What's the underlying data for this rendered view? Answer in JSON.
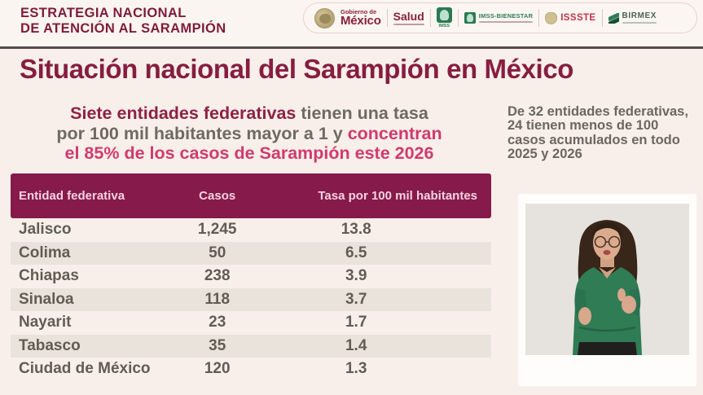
{
  "colors": {
    "maroon": "#871d41",
    "pink_accent": "#d13a6e",
    "table_header_bg": "#861a4b",
    "row_stripe": "#eae3dc",
    "gray_text": "#6e6a61",
    "green_logo": "#2a7a52",
    "page_bg": "#f8efea"
  },
  "brand": {
    "line1": "ESTRATEGIA NACIONAL",
    "line2": "DE ATENCIÓN AL SARAMPIÓN"
  },
  "logo_bar": {
    "gobierno_small": "Gobierno de",
    "gobierno_big": "México",
    "salud": "Salud",
    "imss": "IMSS",
    "imss_bienestar": "IMSS-BIENESTAR",
    "issste": "ISSSTE",
    "birmex": "BIRMEX"
  },
  "slide": {
    "title": "Situación nacional del Sarampión en México",
    "subtitle": {
      "l1_maroon": "Siete entidades federativas",
      "l1_gray": " tienen una tasa",
      "l2_gray": "por 100 mil habitantes mayor a 1 y ",
      "l2_pink": "concentran",
      "l3_pink": "el 85% de los casos de Sarampión este 2026"
    },
    "side_note": "De 32 entidades federativas, 24 tienen menos de 100 casos acumulados en todo 2025 y 2026"
  },
  "table": {
    "columns": [
      "Entidad federativa",
      "Casos",
      "Tasa por 100 mil habitantes"
    ],
    "rows": [
      [
        "Jalisco",
        "1,245",
        "13.8"
      ],
      [
        "Colima",
        "50",
        "6.5"
      ],
      [
        "Chiapas",
        "238",
        "3.9"
      ],
      [
        "Sinaloa",
        "118",
        "3.7"
      ],
      [
        "Nayarit",
        "23",
        "1.7"
      ],
      [
        "Tabasco",
        "35",
        "1.4"
      ],
      [
        "Ciudad de México",
        "120",
        "1.3"
      ]
    ]
  }
}
